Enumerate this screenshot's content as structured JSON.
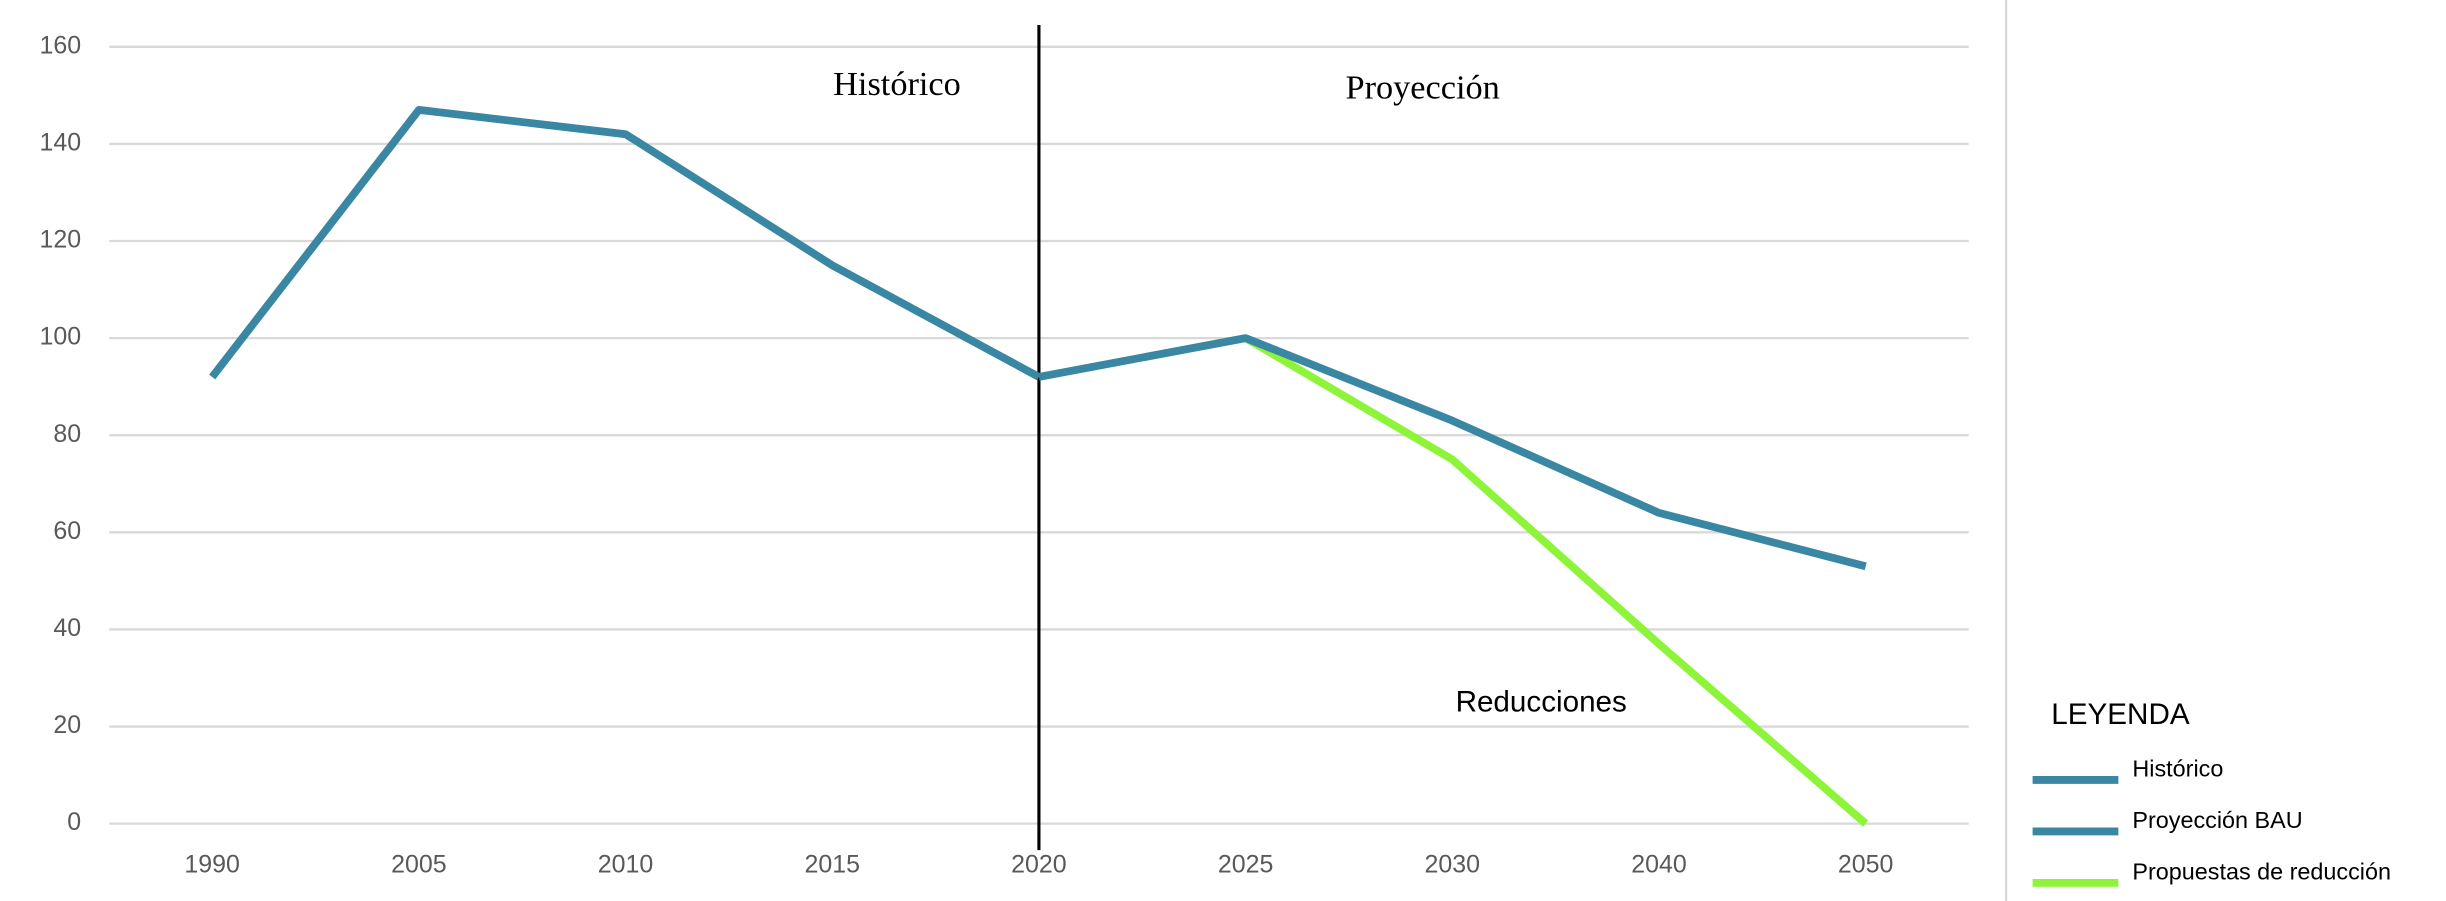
{
  "chart_data": {
    "type": "line",
    "categories": [
      "1990",
      "2005",
      "2010",
      "2015",
      "2020",
      "2025",
      "2030",
      "2040",
      "2050"
    ],
    "series": [
      {
        "name": "Histórico",
        "color": "#3a87a3",
        "values": [
          92,
          147,
          142,
          115,
          92,
          null,
          null,
          null,
          null
        ]
      },
      {
        "name": "Proyección BAU",
        "color": "#3a87a3",
        "values": [
          null,
          null,
          null,
          null,
          92,
          100,
          83,
          64,
          53
        ]
      },
      {
        "name": "Propuestas de reducción",
        "color": "#8ef43a",
        "values": [
          null,
          null,
          null,
          null,
          null,
          100,
          75,
          37,
          0
        ]
      }
    ],
    "ylim": [
      0,
      160
    ],
    "yticks": [
      0,
      20,
      40,
      60,
      80,
      100,
      120,
      140,
      160
    ],
    "grid": true,
    "annotations": [
      "Histórico",
      "Proyección",
      "Reducciones"
    ],
    "legend_title": "LEYENDA"
  }
}
